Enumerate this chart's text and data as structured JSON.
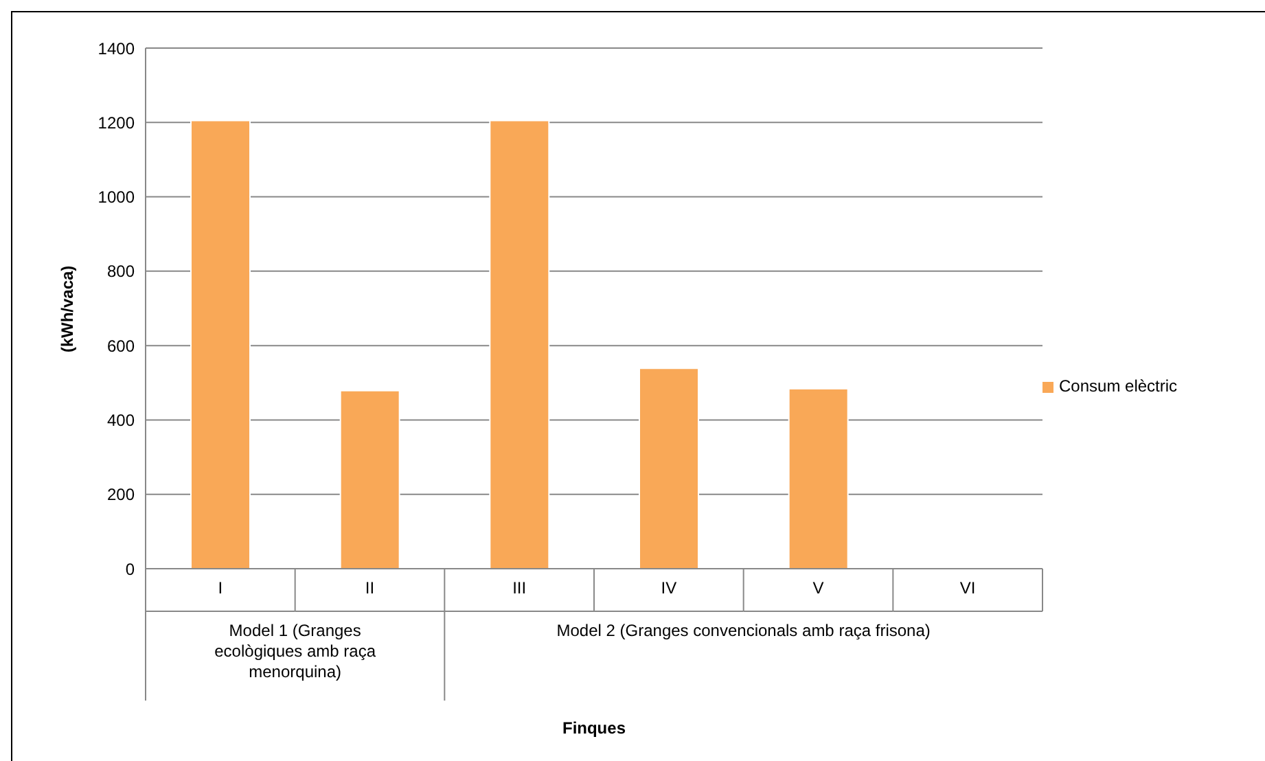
{
  "chart_data": {
    "type": "bar",
    "ylabel": "(kWh/vaca)",
    "categories": [
      "I",
      "II",
      "III",
      "IV",
      "V",
      "VI"
    ],
    "series": [
      {
        "name": "Consum elèctric",
        "color": "#f9a857",
        "values": [
          1205,
          479,
          1205,
          539,
          484,
          null
        ]
      }
    ],
    "ylim": [
      0,
      1400
    ],
    "yticks": [
      0,
      200,
      400,
      600,
      800,
      1000,
      1200,
      1400
    ],
    "grid": "y",
    "legend": "right",
    "annotations": [
      "Model 1 (Granges ecològiques amb raça menorquina)",
      "Model 2 (Granges convencionals amb raça frisona)",
      "Finques"
    ]
  }
}
